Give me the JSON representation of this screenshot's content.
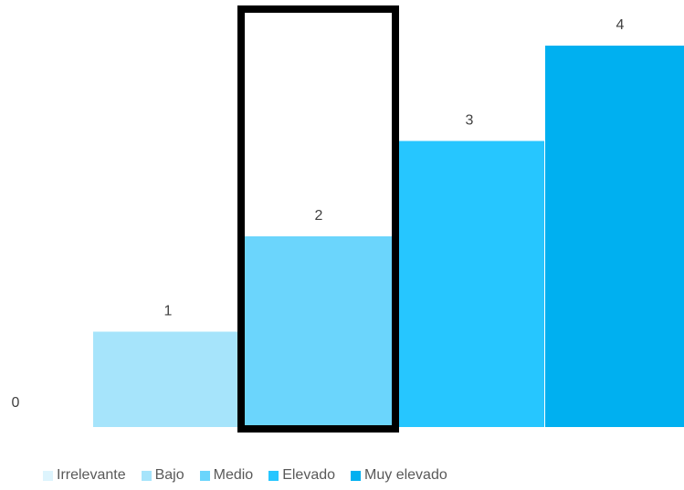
{
  "chart_data": {
    "type": "bar",
    "categories": [
      "Irrelevante",
      "Bajo",
      "Medio",
      "Elevado",
      "Muy elevado"
    ],
    "values": [
      0,
      1,
      2,
      3,
      4
    ],
    "data_labels": [
      "0",
      "1",
      "2",
      "3",
      "4"
    ],
    "colors": [
      "#DDF4FD",
      "#A6E4FB",
      "#6BD5FC",
      "#26C6FF",
      "#00B0F0"
    ],
    "highlight_color": "#000000",
    "highlighted_category": "Medio",
    "ylim": [
      0,
      4
    ],
    "grid": false,
    "legend_position": "bottom",
    "legend": [
      {
        "label": "Irrelevante",
        "color": "#DDF4FD"
      },
      {
        "label": "Bajo",
        "color": "#A6E4FB"
      },
      {
        "label": "Medio",
        "color": "#6BD5FC"
      },
      {
        "label": "Elevado",
        "color": "#26C6FF"
      },
      {
        "label": "Muy elevado",
        "color": "#00B0F0"
      }
    ]
  }
}
